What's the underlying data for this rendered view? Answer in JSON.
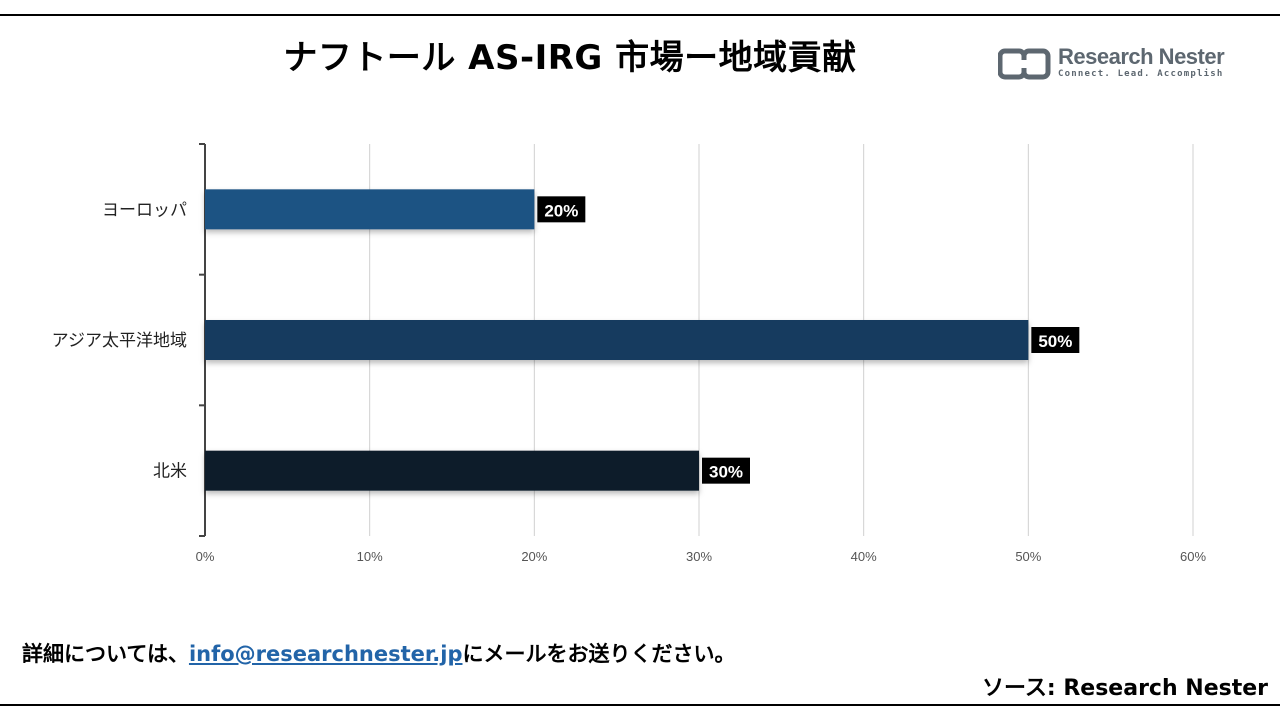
{
  "title": "ナフトール AS-IRG 市場ー地域貢献",
  "logo": {
    "name": "Research Nester",
    "tagline": "Connect. Lead. Accomplish"
  },
  "footer": {
    "prefix": "詳細については、",
    "email": "info@researchnester.jp",
    "suffix": "にメールをお送りください。",
    "source": "ソース: Research Nester"
  },
  "colors": {
    "europe": "#1f5283",
    "apac": "#173b5f",
    "north_america": "#0e1c2c",
    "label_bg": "#000000",
    "label_text": "#ffffff",
    "grid": "#d0d0d0",
    "axis": "#444444"
  },
  "chart_data": {
    "type": "bar",
    "orientation": "horizontal",
    "categories": [
      "ヨーロッパ",
      "アジア太平洋地域",
      "北米"
    ],
    "values": [
      20,
      50,
      30
    ],
    "data_labels": [
      "20%",
      "50%",
      "30%"
    ],
    "xlim": [
      0,
      60
    ],
    "xticks": [
      0,
      10,
      20,
      30,
      40,
      50,
      60
    ],
    "xtick_labels": [
      "0%",
      "10%",
      "20%",
      "30%",
      "40%",
      "50%",
      "60%"
    ],
    "grid": "vertical",
    "legend": "none"
  }
}
